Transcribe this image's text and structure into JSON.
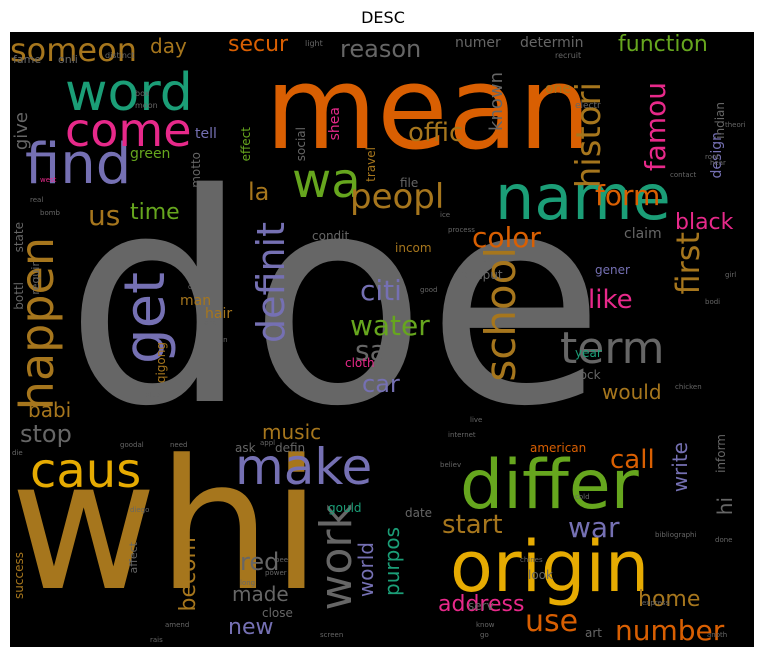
{
  "title": "DESC",
  "palette": {
    "background": "#000000",
    "orange": "#d95f02",
    "gray": "#666666",
    "olive": "#a6761d",
    "teal": "#1b9e77",
    "purple": "#7570b3",
    "pink": "#e7298a",
    "green": "#66a61e",
    "yellow": "#e6ab02"
  },
  "words": [
    {
      "text": "doe",
      "color": "gray"
    },
    {
      "text": "whi",
      "color": "olive"
    },
    {
      "text": "mean",
      "color": "orange"
    },
    {
      "text": "origin",
      "color": "yellow"
    },
    {
      "text": "differ",
      "color": "green"
    },
    {
      "text": "name",
      "color": "teal"
    },
    {
      "text": "find",
      "color": "purple"
    },
    {
      "text": "word",
      "color": "teal"
    },
    {
      "text": "caus",
      "color": "yellow"
    },
    {
      "text": "make",
      "color": "purple"
    },
    {
      "text": "come",
      "color": "pink"
    },
    {
      "text": "wa",
      "color": "green"
    },
    {
      "text": "get",
      "color": "purple"
    },
    {
      "text": "happen",
      "color": "olive"
    },
    {
      "text": "school",
      "color": "olive"
    },
    {
      "text": "term",
      "color": "gray"
    },
    {
      "text": "definit",
      "color": "purple"
    },
    {
      "text": "work",
      "color": "gray"
    },
    {
      "text": "peopl",
      "color": "olive"
    },
    {
      "text": "someon",
      "color": "olive"
    },
    {
      "text": "histori",
      "color": "olive"
    },
    {
      "text": "famou",
      "color": "pink"
    },
    {
      "text": "number",
      "color": "orange"
    },
    {
      "text": "use",
      "color": "orange"
    },
    {
      "text": "first",
      "color": "olive"
    },
    {
      "text": "say",
      "color": "gray"
    },
    {
      "text": "citi",
      "color": "purple"
    },
    {
      "text": "water",
      "color": "green"
    },
    {
      "text": "car",
      "color": "purple"
    },
    {
      "text": "color",
      "color": "orange"
    },
    {
      "text": "us",
      "color": "olive"
    },
    {
      "text": "form",
      "color": "orange"
    },
    {
      "text": "start",
      "color": "olive"
    },
    {
      "text": "war",
      "color": "purple"
    },
    {
      "text": "call",
      "color": "orange"
    },
    {
      "text": "offic",
      "color": "olive"
    },
    {
      "text": "reason",
      "color": "gray"
    },
    {
      "text": "secur",
      "color": "orange"
    },
    {
      "text": "function",
      "color": "green"
    },
    {
      "text": "like",
      "color": "pink"
    },
    {
      "text": "black",
      "color": "pink"
    },
    {
      "text": "time",
      "color": "green"
    },
    {
      "text": "la",
      "color": "olive"
    },
    {
      "text": "stop",
      "color": "gray"
    },
    {
      "text": "babi",
      "color": "olive"
    },
    {
      "text": "red",
      "color": "gray"
    },
    {
      "text": "new",
      "color": "purple"
    },
    {
      "text": "made",
      "color": "gray"
    },
    {
      "text": "becom",
      "color": "olive"
    },
    {
      "text": "world",
      "color": "purple"
    },
    {
      "text": "purpos",
      "color": "teal"
    },
    {
      "text": "address",
      "color": "pink"
    },
    {
      "text": "home",
      "color": "olive"
    },
    {
      "text": "music",
      "color": "olive"
    },
    {
      "text": "would",
      "color": "olive"
    },
    {
      "text": "write",
      "color": "purple"
    },
    {
      "text": "hi",
      "color": "gray"
    },
    {
      "text": "day",
      "color": "olive"
    },
    {
      "text": "known",
      "color": "gray"
    },
    {
      "text": "give",
      "color": "gray"
    },
    {
      "text": "determin",
      "color": "gray"
    },
    {
      "text": "numer",
      "color": "gray"
    },
    {
      "text": "one",
      "color": "olive"
    },
    {
      "text": "design",
      "color": "purple"
    },
    {
      "text": "indian",
      "color": "gray"
    },
    {
      "text": "claim",
      "color": "gray"
    },
    {
      "text": "condit",
      "color": "gray"
    },
    {
      "text": "incom",
      "color": "olive"
    },
    {
      "text": "file",
      "color": "gray"
    },
    {
      "text": "comput",
      "color": "gray"
    },
    {
      "text": "gener",
      "color": "purple"
    },
    {
      "text": "man",
      "color": "olive"
    },
    {
      "text": "hair",
      "color": "olive"
    },
    {
      "text": "tell",
      "color": "purple"
    },
    {
      "text": "green",
      "color": "green"
    },
    {
      "text": "effect",
      "color": "green"
    },
    {
      "text": "social",
      "color": "gray"
    },
    {
      "text": "shea",
      "color": "pink"
    },
    {
      "text": "travel",
      "color": "olive"
    },
    {
      "text": "motto",
      "color": "gray"
    },
    {
      "text": "state",
      "color": "gray"
    },
    {
      "text": "bottl",
      "color": "gray"
    },
    {
      "text": "requir",
      "color": "gray"
    },
    {
      "text": "qigong",
      "color": "olive"
    },
    {
      "text": "cloth",
      "color": "pink"
    },
    {
      "text": "year",
      "color": "teal"
    },
    {
      "text": "rock",
      "color": "gray"
    },
    {
      "text": "ask",
      "color": "gray"
    },
    {
      "text": "defin",
      "color": "gray"
    },
    {
      "text": "date",
      "color": "gray"
    },
    {
      "text": "gould",
      "color": "teal"
    },
    {
      "text": "american",
      "color": "orange"
    },
    {
      "text": "serv",
      "color": "gray"
    },
    {
      "text": "inform",
      "color": "gray"
    },
    {
      "text": "look",
      "color": "gray"
    },
    {
      "text": "art",
      "color": "gray"
    },
    {
      "text": "close",
      "color": "gray"
    },
    {
      "text": "affect",
      "color": "gray"
    },
    {
      "text": "success",
      "color": "olive"
    },
    {
      "text": "fame",
      "color": "gray"
    },
    {
      "text": "onli",
      "color": "gray"
    },
    {
      "text": "distinct",
      "color": "gray"
    },
    {
      "text": "light",
      "color": "gray"
    },
    {
      "text": "recruit",
      "color": "gray"
    },
    {
      "text": "electr",
      "color": "gray"
    },
    {
      "text": "theori",
      "color": "gray"
    },
    {
      "text": "root",
      "color": "gray"
    },
    {
      "text": "hear",
      "color": "gray"
    },
    {
      "text": "contact",
      "color": "gray"
    },
    {
      "text": "box",
      "color": "gray"
    },
    {
      "text": "moon",
      "color": "gray"
    },
    {
      "text": "west",
      "color": "pink"
    },
    {
      "text": "real",
      "color": "gray"
    },
    {
      "text": "bomb",
      "color": "gray"
    },
    {
      "text": "ice",
      "color": "gray"
    },
    {
      "text": "process",
      "color": "gray"
    },
    {
      "text": "john",
      "color": "gray"
    },
    {
      "text": "good",
      "color": "gray"
    },
    {
      "text": "girl",
      "color": "gray"
    },
    {
      "text": "bodi",
      "color": "gray"
    },
    {
      "text": "jane",
      "color": "gray"
    },
    {
      "text": "can",
      "color": "gray"
    },
    {
      "text": "blue",
      "color": "gray"
    },
    {
      "text": "goodal",
      "color": "gray"
    },
    {
      "text": "need",
      "color": "gray"
    },
    {
      "text": "appl",
      "color": "gray"
    },
    {
      "text": "die",
      "color": "gray"
    },
    {
      "text": "internet",
      "color": "gray"
    },
    {
      "text": "live",
      "color": "gray"
    },
    {
      "text": "believ",
      "color": "gray"
    },
    {
      "text": "chicken",
      "color": "gray"
    },
    {
      "text": "done",
      "color": "gray"
    },
    {
      "text": "cold",
      "color": "gray"
    },
    {
      "text": "diego",
      "color": "gray"
    },
    {
      "text": "bee",
      "color": "gray"
    },
    {
      "text": "power",
      "color": "gray"
    },
    {
      "text": "long",
      "color": "gray"
    },
    {
      "text": "chines",
      "color": "gray"
    },
    {
      "text": "bibliographi",
      "color": "gray"
    },
    {
      "text": "express",
      "color": "gray"
    },
    {
      "text": "know",
      "color": "gray"
    },
    {
      "text": "go",
      "color": "gray"
    },
    {
      "text": "amend",
      "color": "gray"
    },
    {
      "text": "rais",
      "color": "gray"
    },
    {
      "text": "screen",
      "color": "gray"
    },
    {
      "text": "anoth",
      "color": "gray"
    },
    {
      "text": "cat",
      "color": "gray"
    }
  ]
}
